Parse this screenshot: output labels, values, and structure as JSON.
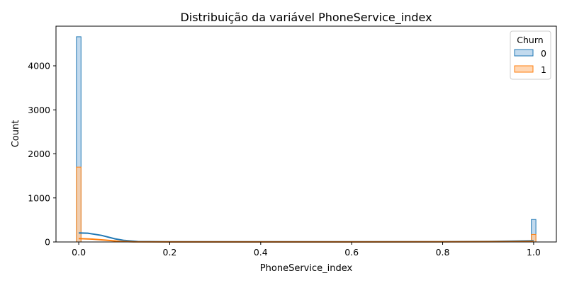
{
  "chart_data": {
    "type": "bar",
    "title": "Distribuição da variável PhoneService_index",
    "xlabel": "PhoneService_index",
    "ylabel": "Count",
    "xlim": [
      -0.05,
      1.05
    ],
    "ylim": [
      0,
      4900
    ],
    "x_ticks": [
      0.0,
      0.2,
      0.4,
      0.6,
      0.8,
      1.0
    ],
    "x_tick_labels": [
      "0.0",
      "0.2",
      "0.4",
      "0.6",
      "0.8",
      "1.0"
    ],
    "y_ticks": [
      0,
      1000,
      2000,
      3000,
      4000
    ],
    "y_tick_labels": [
      "0",
      "1000",
      "2000",
      "3000",
      "4000"
    ],
    "grid": false,
    "legend": {
      "title": "Churn",
      "placement": "top-right"
    },
    "categories": [
      "0.0",
      "1.0"
    ],
    "series": [
      {
        "name": "0",
        "color": "#1f77b4",
        "fill": "#aecde8",
        "values": [
          4660,
          510
        ],
        "kde": [
          [
            0.0,
            205
          ],
          [
            0.02,
            200
          ],
          [
            0.05,
            150
          ],
          [
            0.08,
            70
          ],
          [
            0.1,
            35
          ],
          [
            0.13,
            10
          ],
          [
            0.2,
            5
          ],
          [
            0.4,
            4
          ],
          [
            0.6,
            4
          ],
          [
            0.8,
            6
          ],
          [
            0.9,
            12
          ],
          [
            0.95,
            20
          ],
          [
            1.0,
            30
          ]
        ]
      },
      {
        "name": "1",
        "color": "#ff7f0e",
        "fill": "#ffc99b",
        "values": [
          1700,
          170
        ],
        "kde": [
          [
            0.0,
            75
          ],
          [
            0.03,
            65
          ],
          [
            0.06,
            40
          ],
          [
            0.09,
            15
          ],
          [
            0.12,
            5
          ],
          [
            0.2,
            2
          ],
          [
            0.5,
            2
          ],
          [
            0.8,
            3
          ],
          [
            0.9,
            6
          ],
          [
            0.95,
            8
          ],
          [
            1.0,
            12
          ]
        ]
      }
    ]
  }
}
